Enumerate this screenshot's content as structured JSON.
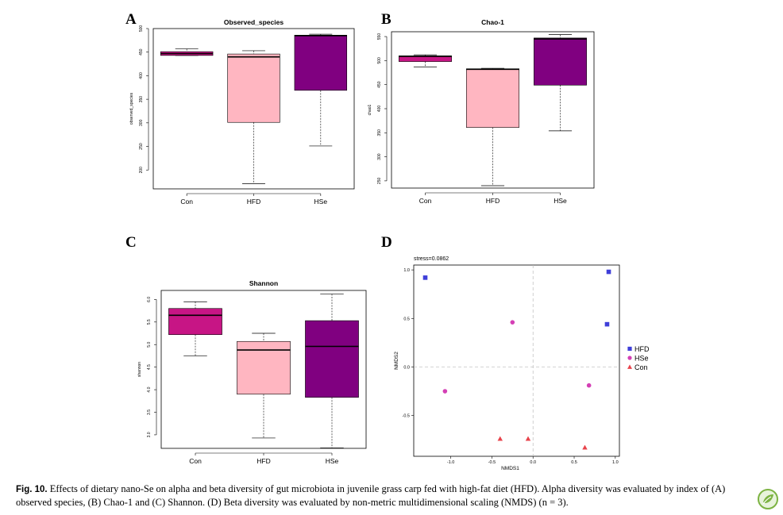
{
  "figure": {
    "caption_label": "Fig. 10.",
    "caption_text": "Effects of dietary nano-Se on alpha and beta diversity of gut microbiota in juvenile grass carp fed with high-fat diet (HFD). Alpha diversity was evaluated by index of (A) observed species, (B) Chao-1 and (C) Shannon. (D) Beta diversity was evaluated by non-metric multidimensional scaling (NMDS) (n = 3).",
    "logo_icon": "publisher-leaf-icon"
  },
  "chart_data": [
    {
      "panel": "A",
      "type": "box",
      "title": "Observed_species",
      "ylabel": "observed_species",
      "ylim": [
        160,
        500
      ],
      "yticks": [
        200,
        250,
        300,
        350,
        400,
        450,
        500
      ],
      "categories": [
        "Con",
        "HFD",
        "HSe"
      ],
      "colors": [
        "#c71585",
        "#ffb6c1",
        "#800080"
      ],
      "boxes": [
        {
          "min": 443,
          "q1": 443,
          "median": 447,
          "q3": 451,
          "max": 457
        },
        {
          "min": 171,
          "q1": 301,
          "median": 440,
          "q3": 446,
          "max": 453
        },
        {
          "min": 251,
          "q1": 369,
          "median": 485,
          "q3": 486,
          "max": 488
        }
      ]
    },
    {
      "panel": "B",
      "type": "box",
      "title": "Chao-1",
      "ylabel": "chao1",
      "ylim": [
        235,
        560
      ],
      "yticks": [
        250,
        300,
        350,
        400,
        450,
        500,
        550
      ],
      "categories": [
        "Con",
        "HFD",
        "HSe"
      ],
      "colors": [
        "#c71585",
        "#ffb6c1",
        "#800080"
      ],
      "boxes": [
        {
          "min": 487,
          "q1": 498,
          "median": 509,
          "q3": 510,
          "max": 512
        },
        {
          "min": 240,
          "q1": 361,
          "median": 482,
          "q3": 483,
          "max": 484
        },
        {
          "min": 354,
          "q1": 449,
          "median": 545,
          "q3": 547,
          "max": 554
        }
      ]
    },
    {
      "panel": "C",
      "type": "box",
      "title": "Shannon",
      "ylabel": "shannon",
      "ylim": [
        2.7,
        6.2
      ],
      "yticks": [
        3.0,
        3.5,
        4.0,
        4.5,
        5.0,
        5.5,
        6.0
      ],
      "categories": [
        "Con",
        "HFD",
        "HSe"
      ],
      "colors": [
        "#c71585",
        "#ffb6c1",
        "#800080"
      ],
      "boxes": [
        {
          "min": 4.75,
          "q1": 5.22,
          "median": 5.65,
          "q3": 5.8,
          "max": 5.95
        },
        {
          "min": 2.93,
          "q1": 3.9,
          "median": 4.88,
          "q3": 5.07,
          "max": 5.25
        },
        {
          "min": 2.71,
          "q1": 3.83,
          "median": 4.96,
          "q3": 5.53,
          "max": 6.12
        }
      ]
    },
    {
      "panel": "D",
      "type": "scatter",
      "annotation": "stress=0.0862",
      "xlabel": "NMDS1",
      "ylabel": "NMDS2",
      "xlim": [
        -1.45,
        1.05
      ],
      "ylim": [
        -0.92,
        1.05
      ],
      "xticks": [
        -1.0,
        -0.5,
        0.0,
        0.5,
        1.0
      ],
      "yticks": [
        -0.5,
        0.0,
        0.5,
        1.0
      ],
      "legend_position": "right",
      "series": [
        {
          "name": "HFD",
          "color": "#3f3fd9",
          "marker": "square",
          "points": [
            [
              -1.31,
              0.92
            ],
            [
              0.92,
              0.98
            ],
            [
              0.9,
              0.44
            ]
          ]
        },
        {
          "name": "HSe",
          "color": "#d43fb5",
          "marker": "circle",
          "points": [
            [
              -0.25,
              0.46
            ],
            [
              -1.07,
              -0.25
            ],
            [
              0.68,
              -0.19
            ]
          ]
        },
        {
          "name": "Con",
          "color": "#e8434b",
          "marker": "triangle",
          "points": [
            [
              -0.4,
              -0.74
            ],
            [
              -0.06,
              -0.74
            ],
            [
              0.63,
              -0.83
            ]
          ]
        }
      ]
    }
  ]
}
